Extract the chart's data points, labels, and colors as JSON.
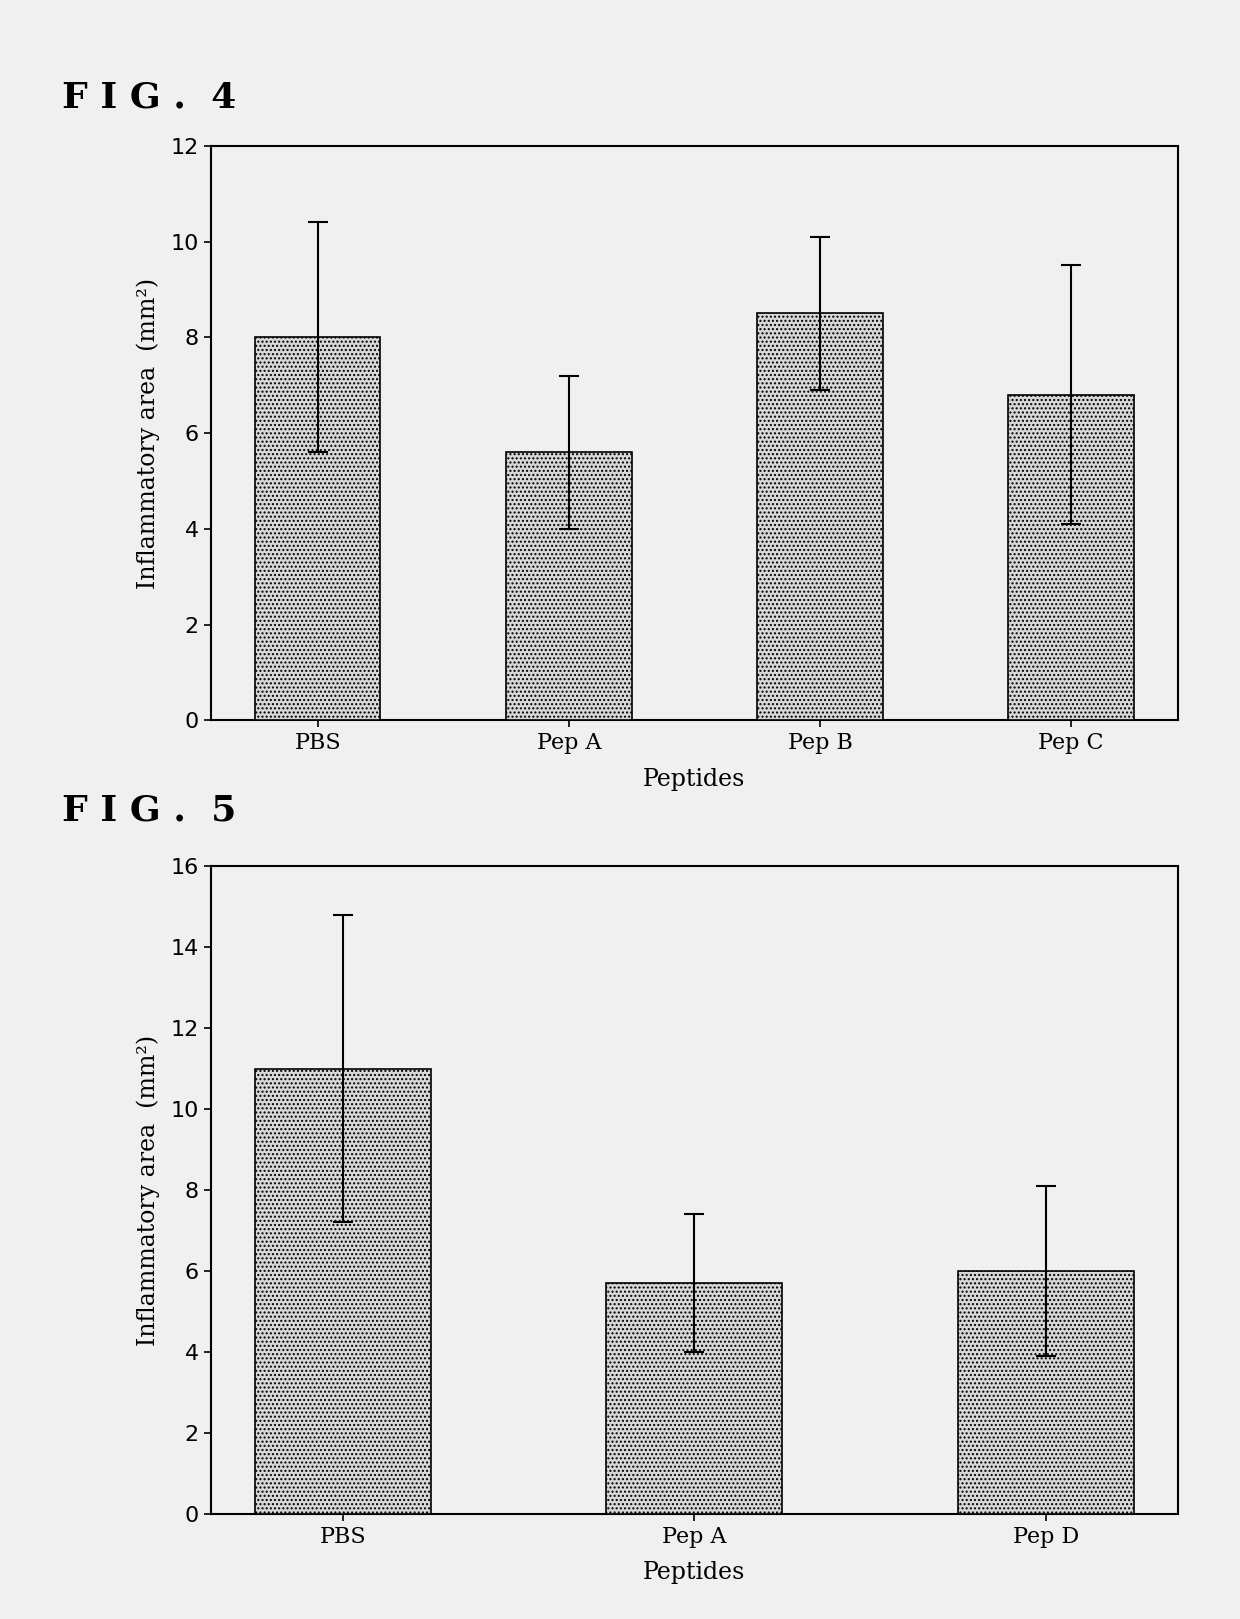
{
  "fig4": {
    "title": "F I G .  4",
    "categories": [
      "PBS",
      "Pep A",
      "Pep B",
      "Pep C"
    ],
    "values": [
      8.0,
      5.6,
      8.5,
      6.8
    ],
    "errors": [
      2.4,
      1.6,
      1.6,
      2.7
    ],
    "xlabel": "Peptides",
    "ylabel": "Inflammatory area  (mm²)",
    "ylim": [
      0,
      12
    ],
    "yticks": [
      0,
      2,
      4,
      6,
      8,
      10,
      12
    ]
  },
  "fig5": {
    "title": "F I G .  5",
    "categories": [
      "PBS",
      "Pep A",
      "Pep D"
    ],
    "values": [
      11.0,
      5.7,
      6.0
    ],
    "errors": [
      3.8,
      1.7,
      2.1
    ],
    "xlabel": "Peptides",
    "ylabel": "Inflammatory area  (mm²)",
    "ylim": [
      0,
      16
    ],
    "yticks": [
      0,
      2,
      4,
      6,
      8,
      10,
      12,
      14,
      16
    ]
  },
  "bar_color": "#d8d8d8",
  "bar_edgecolor": "#000000",
  "background_color": "#f0f0f0",
  "hatch_pattern": "....",
  "title_fontsize": 26,
  "label_fontsize": 17,
  "tick_fontsize": 16,
  "fig_width": 12.4,
  "fig_height": 16.19
}
